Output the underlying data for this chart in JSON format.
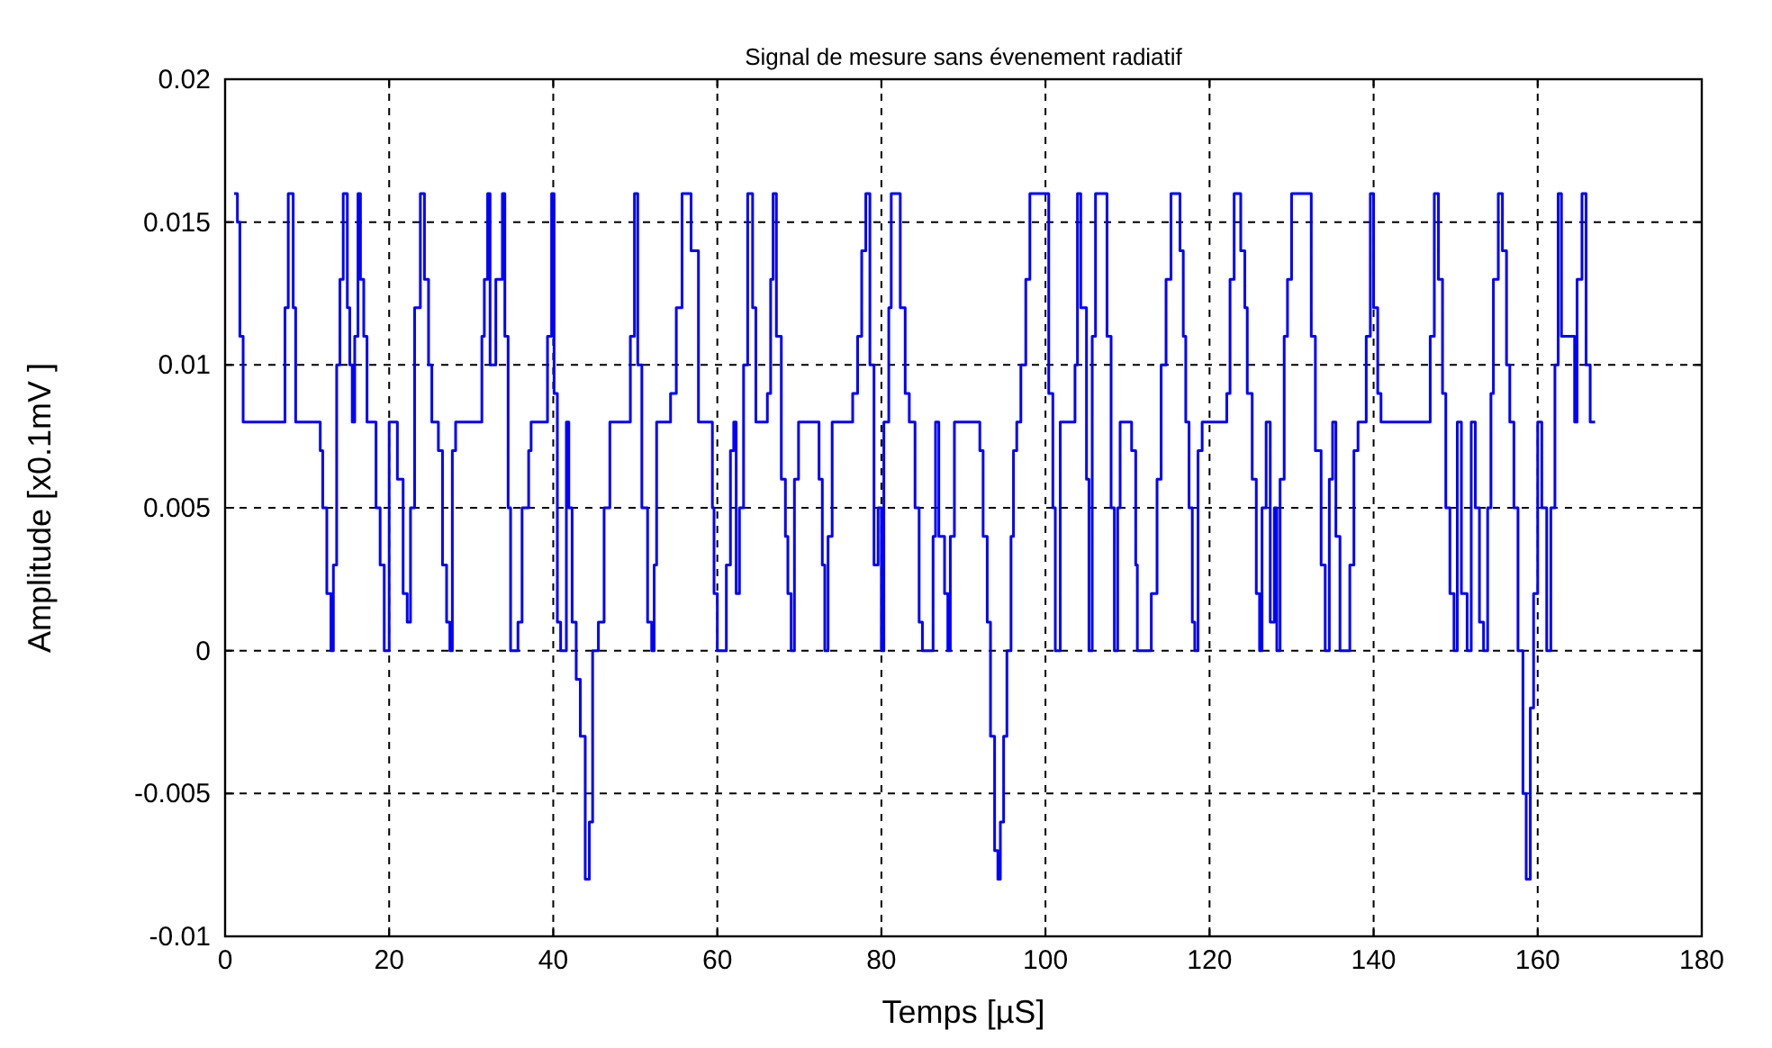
{
  "chart_data": {
    "type": "step",
    "title": "Signal de mesure sans évenement radiatif",
    "xlabel": "Temps [µS]",
    "ylabel": "Amplitude [x0.1mV ]",
    "xlim": [
      0,
      180
    ],
    "xticks": [
      0,
      20,
      40,
      60,
      80,
      100,
      120,
      140,
      160,
      180
    ],
    "ylim": [
      -0.01,
      0.02
    ],
    "yticks": [
      -0.01,
      -0.005,
      0,
      0.005,
      0.01,
      0.015,
      0.02
    ],
    "grid": true,
    "line_style": "solid",
    "series": [
      {
        "color": "#0000ff",
        "x": [
          1.1,
          1.5,
          1.8,
          2.2,
          7.3,
          7.7,
          8.3,
          8.6,
          11.6,
          11.9,
          12.4,
          12.9,
          13.2,
          13.6,
          14,
          14.4,
          14.9,
          15.2,
          15.5,
          15.8,
          16.2,
          16.5,
          16.9,
          17.3,
          18.4,
          18.9,
          19.4,
          20,
          20.6,
          21,
          21.7,
          22.2,
          22.6,
          23.1,
          23.8,
          24.3,
          24.8,
          25.2,
          26,
          26.5,
          27,
          27.4,
          27.7,
          28.1,
          31.3,
          31.6,
          32,
          32.3,
          33,
          33.8,
          34.1,
          34.5,
          34.8,
          35.7,
          36.2,
          37,
          37.3,
          39.3,
          39.8,
          40.1,
          40.5,
          40.9,
          41.6,
          41.9,
          42.3,
          42.8,
          43.3,
          43.9,
          44.4,
          44.8,
          45.5,
          46.2,
          46.9,
          49.4,
          49.9,
          50.3,
          50.8,
          51.5,
          52,
          52.3,
          52.6,
          54.3,
          55,
          55.7,
          56.8,
          57.7,
          59.4,
          59.6,
          60,
          61.1,
          61.6,
          62,
          62.3,
          62.7,
          63.2,
          63.7,
          64.3,
          64.7,
          66.1,
          66.5,
          66.8,
          67.2,
          67.8,
          68.3,
          68.6,
          69,
          69.4,
          69.9,
          72.1,
          72.4,
          72.8,
          73.1,
          73.5,
          74,
          76.5,
          77.1,
          77.6,
          78.1,
          78.6,
          79.1,
          79.6,
          80,
          80.3,
          80.9,
          81.2,
          82.3,
          82.9,
          83.4,
          84.1,
          84.6,
          85,
          86.3,
          86.6,
          87,
          87.7,
          88.1,
          88.4,
          88.9,
          92,
          92.4,
          92.9,
          93.3,
          93.8,
          94.2,
          94.5,
          94.9,
          95.3,
          95.8,
          96.1,
          96.5,
          97,
          97.6,
          98.1,
          100.1,
          100.4,
          100.9,
          101.2,
          101.8,
          103.2,
          103.6,
          103.9,
          104.3,
          105,
          105.3,
          105.7,
          106.1,
          107.5,
          108,
          108.4,
          108.8,
          109.1,
          110.2,
          110.5,
          111,
          111.2,
          112.9,
          113.6,
          114.1,
          114.7,
          115.3,
          116.4,
          116.8,
          117.1,
          117.5,
          117.9,
          118.2,
          118.6,
          119.1,
          122.1,
          122.5,
          123,
          123.8,
          124.3,
          124.6,
          125.2,
          125.7,
          126.1,
          126.4,
          126.9,
          127.4,
          127.9,
          128.2,
          128.6,
          129.1,
          129.5,
          130,
          132.4,
          132.9,
          133.6,
          134.1,
          134.6,
          135,
          135.4,
          135.9,
          137.1,
          137.6,
          138.1,
          139.1,
          139.6,
          140,
          140.5,
          140.9,
          146.9,
          147.4,
          147.9,
          148.4,
          148.8,
          149.3,
          149.8,
          150.2,
          150.7,
          151.4,
          151.9,
          152.4,
          152.9,
          153.4,
          153.9,
          154.3,
          154.6,
          155.2,
          155.7,
          156.2,
          156.6,
          157.1,
          157.6,
          158.2,
          158.6,
          159.1,
          159.5,
          160,
          160.5,
          161.1,
          161.6,
          162.1,
          162.5,
          162.9,
          164.5,
          164.8,
          165.4,
          165.9,
          166.4,
          166.8,
          167
        ],
        "values": [
          0.016,
          0.015,
          0.011,
          0.008,
          0.012,
          0.016,
          0.012,
          0.008,
          0.007,
          0.005,
          0.002,
          0,
          0.003,
          0.01,
          0.013,
          0.016,
          0.012,
          0.01,
          0.008,
          0.011,
          0.016,
          0.013,
          0.011,
          0.008,
          0.005,
          0.003,
          0,
          0.008,
          0.008,
          0.006,
          0.002,
          0.001,
          0.005,
          0.012,
          0.016,
          0.013,
          0.01,
          0.008,
          0.007,
          0.003,
          0.001,
          0,
          0.007,
          0.008,
          0.011,
          0.013,
          0.016,
          0.01,
          0.013,
          0.016,
          0.011,
          0.005,
          0,
          0.001,
          0.005,
          0.007,
          0.008,
          0.011,
          0.016,
          0.009,
          0.001,
          0,
          0.008,
          0.005,
          0.001,
          -0.001,
          -0.003,
          -0.008,
          -0.006,
          0,
          0.001,
          0.005,
          0.008,
          0.011,
          0.016,
          0.01,
          0.005,
          0.001,
          0,
          0.003,
          0.008,
          0.009,
          0.012,
          0.016,
          0.014,
          0.008,
          0.005,
          0.002,
          0,
          0.003,
          0.007,
          0.008,
          0.002,
          0.005,
          0.01,
          0.016,
          0.012,
          0.008,
          0.009,
          0.013,
          0.016,
          0.011,
          0.006,
          0.004,
          0.002,
          0,
          0.006,
          0.008,
          0.008,
          0.006,
          0.003,
          0,
          0.004,
          0.008,
          0.009,
          0.011,
          0.014,
          0.016,
          0.01,
          0.003,
          0.005,
          0,
          0.008,
          0.012,
          0.016,
          0.012,
          0.009,
          0.008,
          0.005,
          0.001,
          0,
          0.004,
          0.008,
          0.004,
          0.002,
          0,
          0.004,
          0.008,
          0.007,
          0.004,
          0.001,
          -0.003,
          -0.007,
          -0.008,
          -0.006,
          -0.003,
          0,
          0.004,
          0.007,
          0.008,
          0.01,
          0.013,
          0.016,
          0.016,
          0.009,
          0.005,
          0,
          0.008,
          0.008,
          0.01,
          0.016,
          0.012,
          0.006,
          0,
          0.011,
          0.016,
          0.011,
          0.005,
          0,
          0.005,
          0.008,
          0.008,
          0.007,
          0.003,
          0,
          0.002,
          0.006,
          0.01,
          0.013,
          0.016,
          0.014,
          0.011,
          0.008,
          0.005,
          0.001,
          0,
          0.007,
          0.008,
          0.009,
          0.013,
          0.016,
          0.014,
          0.012,
          0.009,
          0.006,
          0.002,
          0,
          0.005,
          0.008,
          0.001,
          0.005,
          0,
          0.006,
          0.011,
          0.013,
          0.016,
          0.011,
          0.007,
          0.003,
          0,
          0.006,
          0.008,
          0.004,
          0,
          0.003,
          0.007,
          0.008,
          0.011,
          0.016,
          0.012,
          0.009,
          0.008,
          0.011,
          0.016,
          0.013,
          0.009,
          0.005,
          0.002,
          0,
          0.008,
          0.002,
          0,
          0.008,
          0.005,
          0.001,
          0,
          0.005,
          0.009,
          0.013,
          0.016,
          0.014,
          0.01,
          0.008,
          0.005,
          0,
          -0.005,
          -0.008,
          -0.002,
          0.002,
          0.008,
          0.005,
          0,
          0.005,
          0.01,
          0.016,
          0.011,
          0.008,
          0.013,
          0.016,
          0.01,
          0.008,
          0.008,
          0.008
        ]
      }
    ]
  }
}
